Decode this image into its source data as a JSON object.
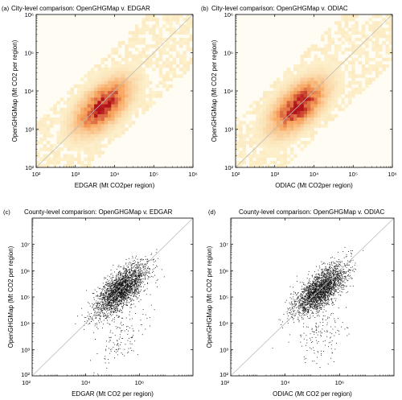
{
  "figure": {
    "panel_count": 4
  },
  "chart_data": [
    {
      "panel_label": "(a)",
      "type": "heatmap",
      "title": "City-level comparison: OpenGHGMap v. EDGAR",
      "xlabel": "EDGAR (Mt CO2per region)",
      "ylabel": "OpenGHGMap (Mt CO2 per region)",
      "x_scale": "log",
      "y_scale": "log",
      "xlim": [
        100,
        1000000
      ],
      "ylim": [
        100,
        1000000
      ],
      "x_ticks": [
        100,
        1000,
        10000,
        100000,
        1000000
      ],
      "x_tick_labels": [
        "10²",
        "10³",
        "10⁴",
        "10⁵",
        "10⁶"
      ],
      "y_ticks": [
        100,
        1000,
        10000,
        100000,
        1000000
      ],
      "y_tick_labels": [
        "10²",
        "10³",
        "10⁴",
        "10⁵",
        "10⁶"
      ],
      "reference_line": "y = x",
      "density_center": [
        5000,
        4000
      ],
      "density_spread": "highest density along diagonal, roughly 10³–10⁵ on both axes"
    },
    {
      "panel_label": "(b)",
      "type": "heatmap",
      "title": "City-level comparison: OpenGHGMap v. ODIAC",
      "xlabel": "ODIAC (Mt CO2per region)",
      "ylabel": "OpenGHGMap (Mt CO2 per region)",
      "x_scale": "log",
      "y_scale": "log",
      "xlim": [
        100,
        1000000
      ],
      "ylim": [
        100,
        1000000
      ],
      "x_ticks": [
        100,
        1000,
        10000,
        100000,
        1000000
      ],
      "x_tick_labels": [
        "10²",
        "10³",
        "10⁴",
        "10⁵",
        "10⁶"
      ],
      "y_ticks": [
        100,
        1000,
        10000,
        100000,
        1000000
      ],
      "y_tick_labels": [
        "10²",
        "10³",
        "10⁴",
        "10⁵",
        "10⁶"
      ],
      "reference_line": "y = x",
      "density_center": [
        4000,
        4000
      ],
      "density_spread": "highest density along diagonal, roughly 10³–10⁵ on both axes"
    },
    {
      "panel_label": "(c)",
      "type": "scatter",
      "title": "County-level comparison: OpenGHGMap v. EDGAR",
      "xlabel": "EDGAR (Mt CO2 per region)",
      "ylabel": "OpenGHGMap (Mt CO2 per region)",
      "x_scale": "log",
      "y_scale": "log",
      "xlim": [
        100,
        100000000
      ],
      "ylim": [
        100,
        100000000
      ],
      "x_ticks": [
        10000,
        1000000
      ],
      "x_tick_labels": [
        "10⁴",
        "10⁶"
      ],
      "x_tick_extra": [
        {
          "value": 100,
          "label": "10²"
        }
      ],
      "y_ticks": [
        1000,
        10000,
        100000,
        1000000,
        10000000
      ],
      "y_tick_labels": [
        "10³",
        "10⁴",
        "10⁵",
        "10⁶",
        "10⁷"
      ],
      "y_tick_extra": [
        {
          "value": 100,
          "label": "10²"
        }
      ],
      "reference_line": "y = x",
      "point_cloud_center": [
        200000,
        200000
      ],
      "point_count_approx": 2500
    },
    {
      "panel_label": "(d)",
      "type": "scatter",
      "title": "County-level comparison: OpenGHGMap v. ODIAC",
      "xlabel": "ODIAC (Mt CO2 per region)",
      "ylabel": "OpenGHGMap (Mt CO2 per region)",
      "x_scale": "log",
      "y_scale": "log",
      "xlim": [
        100,
        100000000
      ],
      "ylim": [
        100,
        100000000
      ],
      "x_ticks": [
        10000,
        1000000
      ],
      "x_tick_labels": [
        "10⁴",
        "10⁶"
      ],
      "x_tick_extra": [
        {
          "value": 100,
          "label": "10²"
        }
      ],
      "y_ticks": [
        1000,
        10000,
        100000,
        1000000,
        10000000
      ],
      "y_tick_labels": [
        "10³",
        "10⁴",
        "10⁵",
        "10⁶",
        "10⁷"
      ],
      "y_tick_extra": [
        {
          "value": 100,
          "label": "10²"
        }
      ],
      "reference_line": "y = x",
      "point_cloud_center": [
        200000,
        200000
      ],
      "point_count_approx": 2500
    }
  ],
  "colors": {
    "heat_low": "#fdf5d2",
    "heat_mid": "#f7a35c",
    "heat_high": "#b3121a",
    "point": "#111111",
    "reference_line": "#bbbbbb",
    "axis": "#000000"
  }
}
